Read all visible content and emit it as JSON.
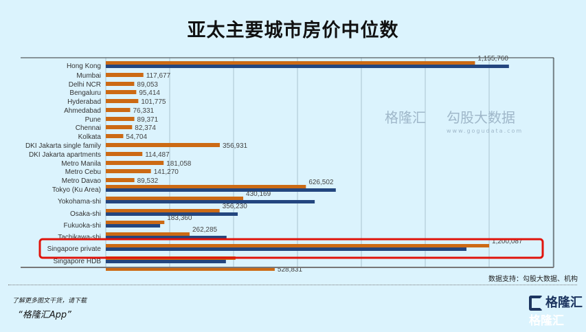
{
  "title": "亚太主要城市房价中位数",
  "source": "数据支持：勾股大数据、机构",
  "promo": {
    "line1": "了解更多图文干货，请下载",
    "line2": "“格隆汇App”"
  },
  "logo": {
    "name": "格隆汇",
    "shadow": "格隆汇"
  },
  "watermark": {
    "left": "格隆汇",
    "right": "勾股大数据",
    "url": "www.gogudata.com"
  },
  "colors": {
    "series1": "#cc6a14",
    "series2": "#23467f",
    "highlight": "#e0140c",
    "grid": "#b9d3df"
  },
  "chart_data": {
    "type": "bar",
    "orientation": "horizontal",
    "title": "亚太主要城市房价中位数",
    "xlim": [
      0,
      1400000
    ],
    "grid": true,
    "categories": [
      "Hong Kong",
      "Mumbai",
      "Delhi NCR",
      "Bengaluru",
      "Hyderabad",
      "Ahmedabad",
      "Pune",
      "Chennai",
      "Kolkata",
      "DKI Jakarta single family",
      "DKI Jakarta apartments",
      "Metro Manila",
      "Metro Cebu",
      "Metro Davao",
      "Tokyo (Ku Area)",
      "Yokohama-shi",
      "Osaka-shi",
      "Fukuoka-shi",
      "Tachikawa-shi",
      "Singapore private",
      "Singapore HDB",
      ""
    ],
    "series": [
      {
        "name": "series1",
        "values": [
          1155760,
          117677,
          89053,
          95414,
          101775,
          76331,
          89371,
          82374,
          54704,
          356931,
          114487,
          181058,
          141270,
          89532,
          626502,
          430169,
          356230,
          183360,
          262285,
          1200087,
          406000,
          528831
        ],
        "labels": [
          "1,155,760",
          "117,677",
          "89,053",
          "95,414",
          "101,775",
          "76,331",
          "89,371",
          "82,374",
          "54,704",
          "356,931",
          "114,487",
          "181,058",
          "141,270",
          "89,532",
          "626,502",
          "430,169",
          "356,230",
          "183,360",
          "262,285",
          "1,200,087",
          "",
          "528,831"
        ]
      },
      {
        "name": "series2",
        "values": [
          1262000,
          null,
          null,
          null,
          null,
          null,
          null,
          null,
          null,
          null,
          null,
          null,
          null,
          null,
          720000,
          654000,
          413000,
          170000,
          378000,
          1129000,
          376000,
          null
        ]
      }
    ],
    "highlight": "Singapore private"
  }
}
